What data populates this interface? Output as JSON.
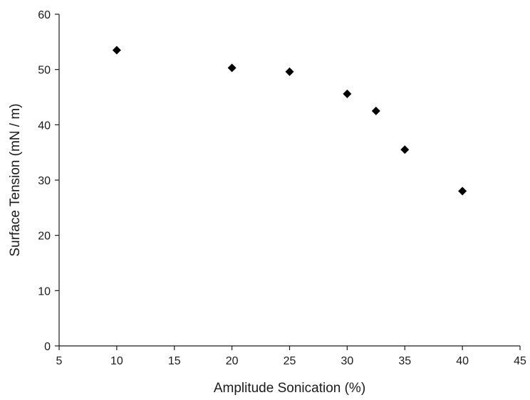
{
  "chart_data": {
    "type": "scatter",
    "xlabel": "Amplitude Sonication (%)",
    "ylabel": "Surface Tension (mN / m)",
    "xlim": [
      5,
      45
    ],
    "ylim": [
      0,
      60
    ],
    "xticks": [
      5,
      10,
      15,
      20,
      25,
      30,
      35,
      40,
      45
    ],
    "yticks": [
      0,
      10,
      20,
      30,
      40,
      50,
      60
    ],
    "grid": false,
    "marker": "diamond",
    "marker_color": "#000000",
    "series": [
      {
        "x": [
          10,
          20,
          25,
          30,
          32.5,
          35,
          40
        ],
        "y": [
          53.5,
          50.3,
          49.6,
          45.6,
          42.5,
          35.5,
          28.0
        ]
      }
    ]
  }
}
